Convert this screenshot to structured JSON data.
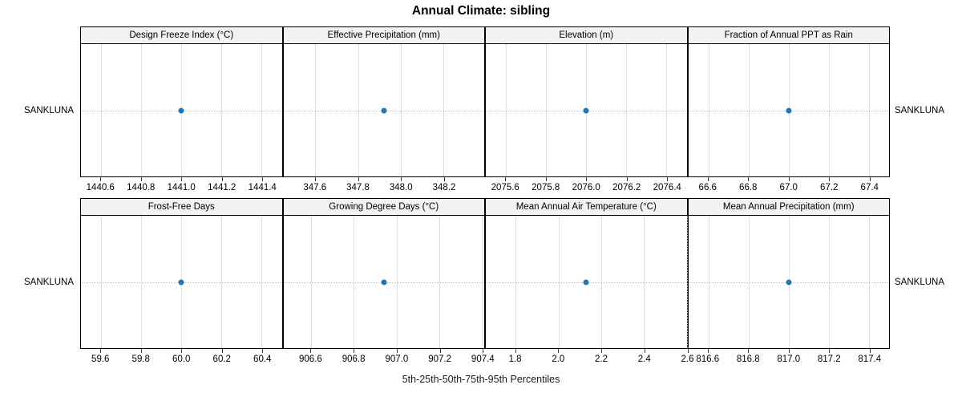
{
  "title": "Annual Climate: sibling",
  "caption": "5th-25th-50th-75th-95th Percentiles",
  "y_axis": {
    "category": "SANKLUNA"
  },
  "colors": {
    "point": "#1f77b4",
    "strip_bg": "#f2f2f2",
    "grid": "#c4c4c4",
    "border": "#000000",
    "tick": "#3c3c3c"
  },
  "chart_data": {
    "type": "scatter",
    "subtype": "trellis-dotplot",
    "trellis_layout": [
      2,
      4
    ],
    "y_categories": [
      "SANKLUNA"
    ],
    "grid": "dotted at ticks and category row",
    "panels": [
      {
        "title": "Design Freeze Index (°C)",
        "value": 1441.0,
        "xlim": [
          1440.5,
          1441.5
        ],
        "tick_labels": [
          "1440.6",
          "1440.8",
          "1441.0",
          "1441.2",
          "1441.4"
        ]
      },
      {
        "title": "Effective Precipitation (mm)",
        "value": 347.92,
        "xlim": [
          347.45,
          348.39
        ],
        "tick_labels": [
          "347.6",
          "347.8",
          "348.0",
          "348.2"
        ]
      },
      {
        "title": "Elevation (m)",
        "value": 2076.0,
        "xlim": [
          2075.5,
          2076.5
        ],
        "tick_labels": [
          "2075.6",
          "2075.8",
          "2076.0",
          "2076.2",
          "2076.4"
        ]
      },
      {
        "title": "Fraction of Annual PPT as Rain",
        "value": 67.0,
        "xlim": [
          66.5,
          67.5
        ],
        "tick_labels": [
          "66.6",
          "66.8",
          "67.0",
          "67.2",
          "67.4"
        ]
      },
      {
        "title": "Frost-Free Days",
        "value": 60.0,
        "xlim": [
          59.5,
          60.5
        ],
        "tick_labels": [
          "59.6",
          "59.8",
          "60.0",
          "60.2",
          "60.4"
        ]
      },
      {
        "title": "Growing Degree Days (°C)",
        "value": 906.94,
        "xlim": [
          906.47,
          907.41
        ],
        "tick_labels": [
          "906.6",
          "906.8",
          "907.0",
          "907.2",
          "907.4"
        ]
      },
      {
        "title": "Mean Annual Air Temperature (°C)",
        "value": 2.13,
        "xlim": [
          1.66,
          2.6
        ],
        "tick_labels": [
          "1.8",
          "2.0",
          "2.2",
          "2.4",
          "2.6"
        ]
      },
      {
        "title": "Mean Annual Precipitation (mm)",
        "value": 817.0,
        "xlim": [
          816.5,
          817.5
        ],
        "tick_labels": [
          "816.6",
          "816.8",
          "817.0",
          "817.2",
          "817.4"
        ]
      }
    ]
  }
}
